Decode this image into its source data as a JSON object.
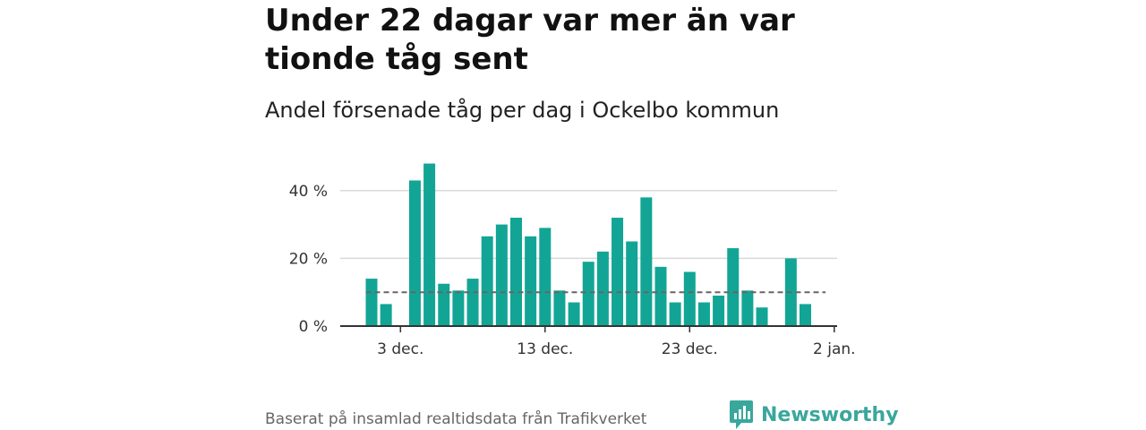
{
  "title": "Under 22 dagar var mer än var tionde tåg sent",
  "subtitle": "Andel försenade tåg per dag i Ockelbo kommun",
  "source": "Baserat på insamlad realtidsdata från Trafikverket",
  "brand": {
    "name": "Newsworthy",
    "icon": "newsworthy-logo-icon",
    "color": "#3aa79c"
  },
  "colors": {
    "bar": "#12a595",
    "grid": "#d9d9d9",
    "axis": "#333333",
    "reference": "#666666"
  },
  "chart_data": {
    "type": "bar",
    "x": [
      "2020-12-01",
      "2020-12-02",
      "2020-12-03",
      "2020-12-04",
      "2020-12-05",
      "2020-12-06",
      "2020-12-07",
      "2020-12-08",
      "2020-12-09",
      "2020-12-10",
      "2020-12-11",
      "2020-12-12",
      "2020-12-13",
      "2020-12-14",
      "2020-12-15",
      "2020-12-16",
      "2020-12-17",
      "2020-12-18",
      "2020-12-19",
      "2020-12-20",
      "2020-12-21",
      "2020-12-22",
      "2020-12-23",
      "2020-12-24",
      "2020-12-25",
      "2020-12-26",
      "2020-12-27",
      "2020-12-28",
      "2020-12-29",
      "2020-12-30",
      "2020-12-31",
      "2021-01-01"
    ],
    "values": [
      14,
      6.5,
      null,
      43,
      48,
      12.5,
      10.5,
      14,
      26.5,
      30,
      32,
      26.5,
      29,
      10.5,
      7,
      19,
      22,
      32,
      25,
      38,
      17.5,
      7,
      16,
      7,
      9,
      23,
      10.5,
      5.5,
      null,
      20,
      6.5,
      null
    ],
    "unit": "%",
    "ylim": [
      0,
      50
    ],
    "yticks": [
      0,
      20,
      40
    ],
    "ytick_labels": [
      "0 %",
      "20 %",
      "40 %"
    ],
    "xticks": [
      "2020-12-03",
      "2020-12-13",
      "2020-12-23",
      "2021-01-02"
    ],
    "xtick_labels": [
      "3 dec.",
      "13 dec.",
      "23 dec.",
      "2 jan."
    ],
    "reference_line": 10,
    "grid": true
  }
}
